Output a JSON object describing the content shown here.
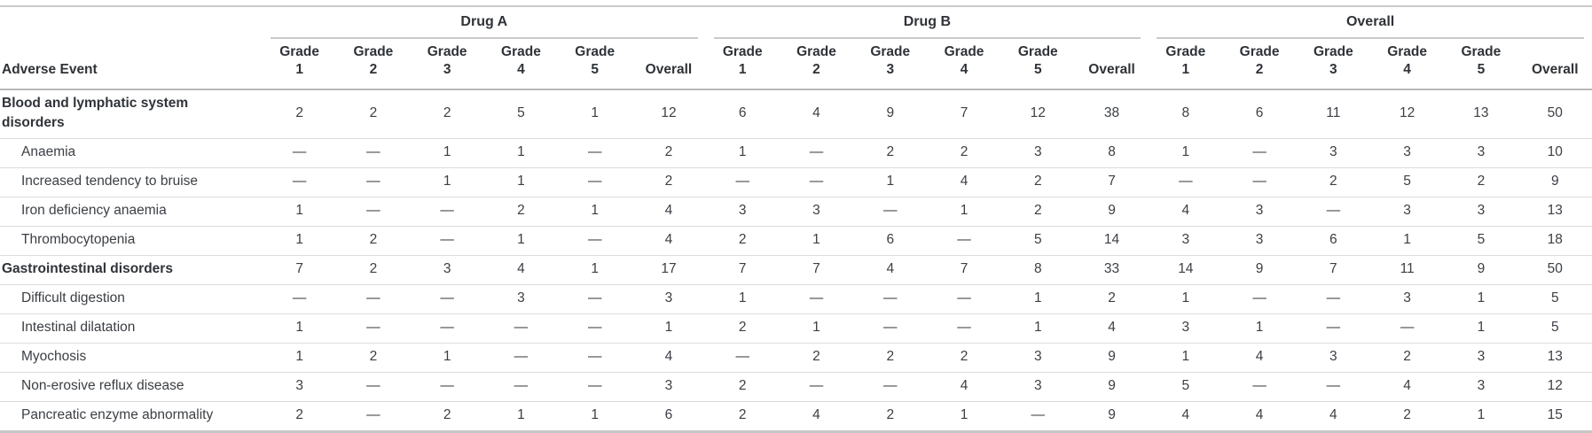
{
  "chart_data": {
    "type": "table",
    "title": "",
    "row_header_label": "Adverse Event",
    "missing_value_symbol": "—",
    "column_groups": [
      {
        "label": "Drug A"
      },
      {
        "label": "Drug B"
      },
      {
        "label": "Overall"
      }
    ],
    "sub_columns": [
      {
        "top": "Grade",
        "bottom": "1"
      },
      {
        "top": "Grade",
        "bottom": "2"
      },
      {
        "top": "Grade",
        "bottom": "3"
      },
      {
        "top": "Grade",
        "bottom": "4"
      },
      {
        "top": "Grade",
        "bottom": "5"
      },
      {
        "top": "",
        "bottom": "Overall"
      }
    ],
    "rows": [
      {
        "label": "Blood and lymphatic system disorders",
        "category": true,
        "drug_a": [
          "2",
          "2",
          "2",
          "5",
          "1",
          "12"
        ],
        "drug_b": [
          "6",
          "4",
          "9",
          "7",
          "12",
          "38"
        ],
        "overall": [
          "8",
          "6",
          "11",
          "12",
          "13",
          "50"
        ]
      },
      {
        "label": "Anaemia",
        "category": false,
        "drug_a": [
          "—",
          "—",
          "1",
          "1",
          "—",
          "2"
        ],
        "drug_b": [
          "1",
          "—",
          "2",
          "2",
          "3",
          "8"
        ],
        "overall": [
          "1",
          "—",
          "3",
          "3",
          "3",
          "10"
        ]
      },
      {
        "label": "Increased tendency to bruise",
        "category": false,
        "drug_a": [
          "—",
          "—",
          "1",
          "1",
          "—",
          "2"
        ],
        "drug_b": [
          "—",
          "—",
          "1",
          "4",
          "2",
          "7"
        ],
        "overall": [
          "—",
          "—",
          "2",
          "5",
          "2",
          "9"
        ]
      },
      {
        "label": "Iron deficiency anaemia",
        "category": false,
        "drug_a": [
          "1",
          "—",
          "—",
          "2",
          "1",
          "4"
        ],
        "drug_b": [
          "3",
          "3",
          "—",
          "1",
          "2",
          "9"
        ],
        "overall": [
          "4",
          "3",
          "—",
          "3",
          "3",
          "13"
        ]
      },
      {
        "label": "Thrombocytopenia",
        "category": false,
        "drug_a": [
          "1",
          "2",
          "—",
          "1",
          "—",
          "4"
        ],
        "drug_b": [
          "2",
          "1",
          "6",
          "—",
          "5",
          "14"
        ],
        "overall": [
          "3",
          "3",
          "6",
          "1",
          "5",
          "18"
        ]
      },
      {
        "label": "Gastrointestinal disorders",
        "category": true,
        "drug_a": [
          "7",
          "2",
          "3",
          "4",
          "1",
          "17"
        ],
        "drug_b": [
          "7",
          "7",
          "4",
          "7",
          "8",
          "33"
        ],
        "overall": [
          "14",
          "9",
          "7",
          "11",
          "9",
          "50"
        ]
      },
      {
        "label": "Difficult digestion",
        "category": false,
        "drug_a": [
          "—",
          "—",
          "—",
          "3",
          "—",
          "3"
        ],
        "drug_b": [
          "1",
          "—",
          "—",
          "—",
          "1",
          "2"
        ],
        "overall": [
          "1",
          "—",
          "—",
          "3",
          "1",
          "5"
        ]
      },
      {
        "label": "Intestinal dilatation",
        "category": false,
        "drug_a": [
          "1",
          "—",
          "—",
          "—",
          "—",
          "1"
        ],
        "drug_b": [
          "2",
          "1",
          "—",
          "—",
          "1",
          "4"
        ],
        "overall": [
          "3",
          "1",
          "—",
          "—",
          "1",
          "5"
        ]
      },
      {
        "label": "Myochosis",
        "category": false,
        "drug_a": [
          "1",
          "2",
          "1",
          "—",
          "—",
          "4"
        ],
        "drug_b": [
          "—",
          "2",
          "2",
          "2",
          "3",
          "9"
        ],
        "overall": [
          "1",
          "4",
          "3",
          "2",
          "3",
          "13"
        ]
      },
      {
        "label": "Non-erosive reflux disease",
        "category": false,
        "drug_a": [
          "3",
          "—",
          "—",
          "—",
          "—",
          "3"
        ],
        "drug_b": [
          "2",
          "—",
          "—",
          "4",
          "3",
          "9"
        ],
        "overall": [
          "5",
          "—",
          "—",
          "4",
          "3",
          "12"
        ]
      },
      {
        "label": "Pancreatic enzyme abnormality",
        "category": false,
        "drug_a": [
          "2",
          "—",
          "2",
          "1",
          "1",
          "6"
        ],
        "drug_b": [
          "2",
          "4",
          "2",
          "1",
          "—",
          "9"
        ],
        "overall": [
          "4",
          "4",
          "4",
          "2",
          "1",
          "15"
        ]
      }
    ]
  },
  "colors": {
    "text": "#3b3f44",
    "heading_text": "#2f3338",
    "top_rule": "#c9c9c9",
    "group_underline": "#c9c9c9",
    "header_rule": "#b8b8b8",
    "row_rule": "#dcdcdc",
    "bottom_rule": "#c6c6c6",
    "background": "#ffffff"
  }
}
